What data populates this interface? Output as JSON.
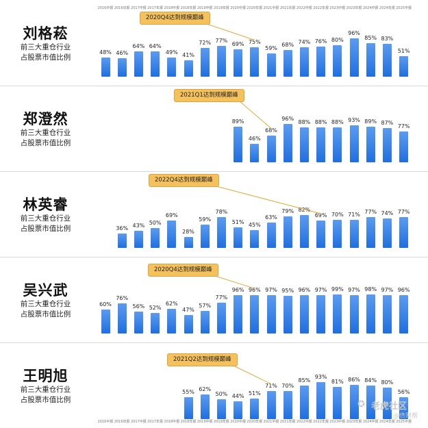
{
  "periods": [
    "2016中报",
    "2016年报",
    "2017中报",
    "2017年报",
    "2018中报",
    "2018年报",
    "2019中报",
    "2019年报",
    "2020中报",
    "2020年报",
    "2021中报",
    "2021年报",
    "2022中报",
    "2022年报",
    "2023中报",
    "2023年报",
    "2024中报",
    "2024年报",
    "2025中报"
  ],
  "description": "前三大重仓行业\n占股票市值比例",
  "watermark": {
    "brand": "老虎社区",
    "handle": "@债财帮"
  },
  "chart_data": [
    {
      "type": "bar",
      "name": "刘格菘",
      "callout": "2020Q4达到规模巅峰",
      "peak_period": "2020年报",
      "values": [
        48,
        46,
        64,
        64,
        49,
        41,
        72,
        77,
        69,
        75,
        59,
        68,
        74,
        76,
        80,
        96,
        85,
        83,
        51
      ],
      "ylim": [
        0,
        100
      ]
    },
    {
      "type": "bar",
      "name": "郑澄然",
      "callout": "2021Q1达到规模巅峰",
      "peak_period": "2021中报",
      "values": [
        null,
        null,
        null,
        null,
        null,
        null,
        null,
        null,
        89,
        46,
        68,
        96,
        88,
        88,
        88,
        93,
        89,
        87,
        77
      ],
      "ylim": [
        0,
        100
      ]
    },
    {
      "type": "bar",
      "name": "林英睿",
      "callout": "2022Q4达到规模巅峰",
      "peak_period": "2022年报",
      "values": [
        null,
        36,
        43,
        50,
        69,
        28,
        59,
        78,
        51,
        45,
        63,
        79,
        82,
        69,
        70,
        71,
        77,
        74,
        77
      ],
      "ylim": [
        0,
        100
      ]
    },
    {
      "type": "bar",
      "name": "吴兴武",
      "callout": "2020Q4达到规模巅峰",
      "peak_period": "2020年报",
      "values": [
        60,
        76,
        56,
        52,
        62,
        47,
        57,
        77,
        96,
        96,
        97,
        95,
        96,
        97,
        99,
        97,
        98,
        97,
        96
      ],
      "ylim": [
        0,
        100
      ]
    },
    {
      "type": "bar",
      "name": "王明旭",
      "callout": "2021Q2达到规模巅峰",
      "peak_period": "2021中报",
      "values": [
        null,
        null,
        null,
        null,
        null,
        55,
        62,
        50,
        44,
        51,
        71,
        70,
        85,
        93,
        81,
        86,
        84,
        80,
        56
      ],
      "ylim": [
        0,
        100
      ]
    }
  ]
}
